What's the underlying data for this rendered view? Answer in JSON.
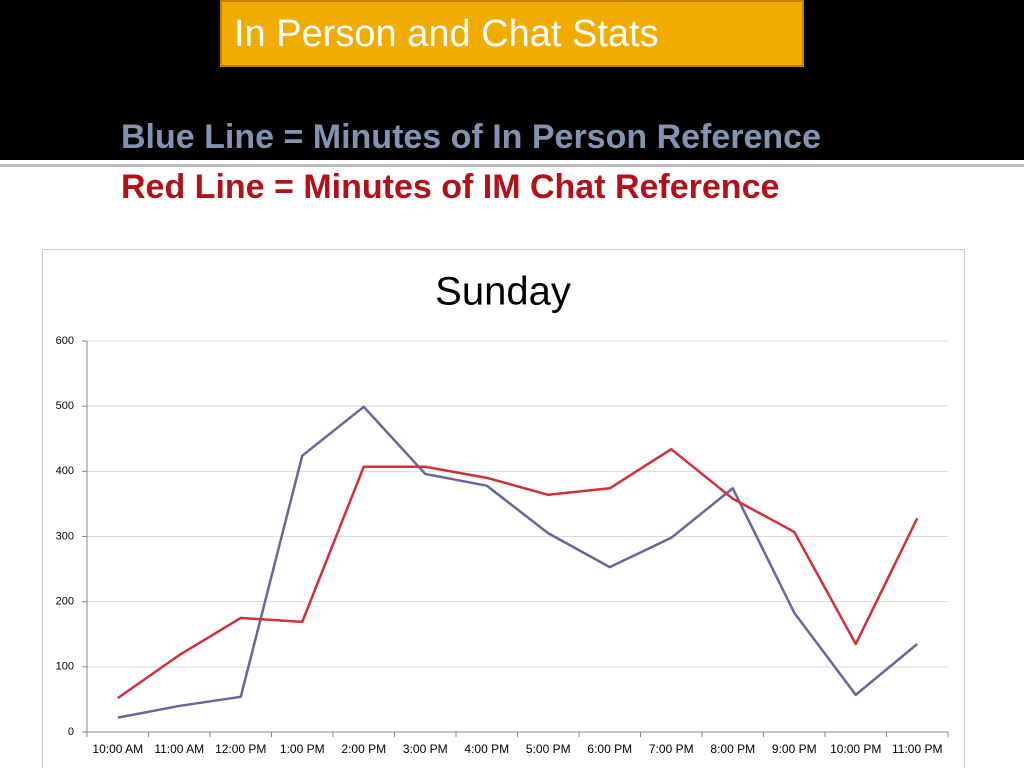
{
  "header": {
    "title": "In Person and Chat Stats",
    "lines": [
      {
        "text": "Blue Line = Minutes of In Person Reference",
        "color": "#8393b0"
      },
      {
        "text": "Red Line = Minutes of IM Chat Reference",
        "color": "#b3101a"
      }
    ]
  },
  "chart_data": {
    "type": "line",
    "title": "Sunday",
    "categories": [
      "10:00 AM",
      "11:00 AM",
      "12:00 PM",
      "1:00 PM",
      "2:00 PM",
      "3:00 PM",
      "4:00 PM",
      "5:00 PM",
      "6:00 PM",
      "7:00 PM",
      "8:00 PM",
      "9:00 PM",
      "10:00 PM",
      "11:00 PM"
    ],
    "series": [
      {
        "color": "#66669a",
        "values": [
          22,
          40,
          54,
          424,
          499,
          396,
          378,
          305,
          253,
          298,
          374,
          183,
          57,
          135
        ]
      },
      {
        "color": "#d0303a",
        "values": [
          52,
          118,
          175,
          169,
          407,
          407,
          390,
          364,
          374,
          434,
          358,
          307,
          135,
          328
        ]
      }
    ],
    "ylim": [
      0,
      600
    ],
    "yticks": [
      0,
      100,
      200,
      300,
      400,
      500,
      600
    ],
    "grid": true
  }
}
